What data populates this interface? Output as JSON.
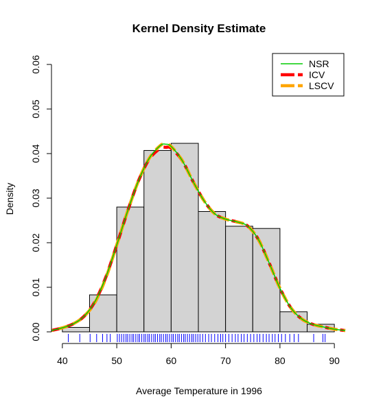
{
  "chart_data": {
    "type": "histogram",
    "title": "Kernel Density Estimate",
    "xlabel": "Average Temperature in 1996",
    "ylabel": "Density",
    "xlim": [
      38,
      92
    ],
    "ylim": [
      0,
      0.06
    ],
    "x_ticks": [
      40,
      50,
      60,
      70,
      80,
      90
    ],
    "x_tick_labels": [
      "40",
      "50",
      "60",
      "70",
      "80",
      "90"
    ],
    "y_ticks": [
      0,
      0.01,
      0.02,
      0.03,
      0.04,
      0.05,
      0.06
    ],
    "y_tick_labels": [
      "0.00",
      "0.01",
      "0.02",
      "0.03",
      "0.04",
      "0.05",
      "0.06"
    ],
    "grid": false,
    "legend_position": "top-right",
    "bar_color": "#d3d3d3",
    "histogram": {
      "bin_edges": [
        40,
        45,
        50,
        55,
        60,
        65,
        70,
        75,
        80,
        85,
        90
      ],
      "density": [
        0.001,
        0.0083,
        0.028,
        0.0407,
        0.0423,
        0.027,
        0.0237,
        0.0232,
        0.0045,
        0.0017
      ]
    },
    "series": [
      {
        "name": "NSR",
        "color": "#00cc00",
        "dash": "solid",
        "x": [
          38,
          40,
          42,
          44,
          46,
          48,
          50,
          52,
          54,
          56,
          58,
          59,
          60,
          62,
          64,
          66,
          68,
          70,
          72,
          74,
          76,
          78,
          80,
          82,
          84,
          86,
          88,
          90,
          92
        ],
        "y": [
          0.0003,
          0.0009,
          0.0018,
          0.0035,
          0.0068,
          0.0123,
          0.0195,
          0.0271,
          0.0339,
          0.039,
          0.0418,
          0.0421,
          0.0416,
          0.0385,
          0.0338,
          0.0295,
          0.0265,
          0.0253,
          0.0247,
          0.0238,
          0.0208,
          0.0155,
          0.0098,
          0.0054,
          0.0029,
          0.0017,
          0.0011,
          0.0006,
          0.0003
        ]
      },
      {
        "name": "ICV",
        "color": "#ff0000",
        "dash": "dashed",
        "x": [
          38,
          40,
          42,
          44,
          46,
          48,
          50,
          52,
          54,
          56,
          58,
          59,
          60,
          62,
          64,
          66,
          68,
          70,
          72,
          74,
          76,
          78,
          80,
          82,
          84,
          86,
          88,
          90,
          92
        ],
        "y": [
          0.0003,
          0.0009,
          0.0018,
          0.0035,
          0.0068,
          0.0123,
          0.0195,
          0.0271,
          0.0339,
          0.0388,
          0.0412,
          0.0414,
          0.0412,
          0.0385,
          0.0338,
          0.0295,
          0.0265,
          0.0253,
          0.0247,
          0.0238,
          0.0208,
          0.0155,
          0.0098,
          0.0054,
          0.0029,
          0.0017,
          0.0011,
          0.0006,
          0.0003
        ]
      },
      {
        "name": "LSCV",
        "color": "#ffa500",
        "dash": "dashed",
        "x": [
          38,
          40,
          42,
          44,
          46,
          48,
          50,
          52,
          54,
          56,
          58,
          59,
          60,
          62,
          64,
          66,
          68,
          70,
          72,
          74,
          76,
          78,
          80,
          82,
          84,
          86,
          88,
          90,
          92
        ],
        "y": [
          0.0003,
          0.0009,
          0.0018,
          0.0035,
          0.0066,
          0.0121,
          0.0195,
          0.0271,
          0.0339,
          0.039,
          0.0418,
          0.0421,
          0.0416,
          0.0385,
          0.0338,
          0.0295,
          0.0265,
          0.0253,
          0.0247,
          0.0238,
          0.0208,
          0.0155,
          0.0098,
          0.0054,
          0.0029,
          0.0017,
          0.0011,
          0.0006,
          0.0003
        ]
      }
    ],
    "rug": {
      "color": "#0000ff",
      "values": [
        41.1,
        43.2,
        45.1,
        46.3,
        47.4,
        48.2,
        48.8,
        50.1,
        50.5,
        50.9,
        51.3,
        51.7,
        52.0,
        52.4,
        52.8,
        53.1,
        53.5,
        53.9,
        54.2,
        54.6,
        55.0,
        55.3,
        55.7,
        56.0,
        56.4,
        56.8,
        57.1,
        57.5,
        57.9,
        58.2,
        58.6,
        59.0,
        59.3,
        59.7,
        60.1,
        60.4,
        60.8,
        61.2,
        61.5,
        61.9,
        62.3,
        62.6,
        63.0,
        63.4,
        63.8,
        64.1,
        64.5,
        64.9,
        65.3,
        65.8,
        66.3,
        66.9,
        67.4,
        68.0,
        68.6,
        69.1,
        69.5,
        70.0,
        70.6,
        71.2,
        71.8,
        72.3,
        72.9,
        73.4,
        74.0,
        74.6,
        75.2,
        75.8,
        76.3,
        76.9,
        77.5,
        78.0,
        78.6,
        79.1,
        79.7,
        80.3,
        81.0,
        81.8,
        82.6,
        83.4,
        86.2,
        87.9,
        88.3
      ]
    }
  }
}
